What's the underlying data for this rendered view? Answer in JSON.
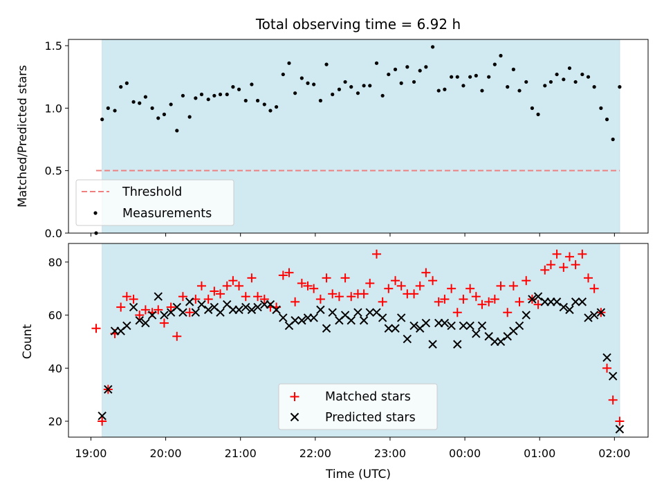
{
  "chart_data": [
    {
      "type": "scatter",
      "title": "Total observing time = 6.92 h",
      "ylabel": "Matched/Predicted stars",
      "xlabel": "",
      "ylim": [
        0,
        1.55
      ],
      "yticks": [
        "0.0",
        "0.5",
        "1.0",
        "1.5"
      ],
      "xlim_hours": [
        18.7,
        26.45
      ],
      "shaded_span_hours": [
        19.15,
        26.07
      ],
      "shade_color": "#add8e6",
      "threshold": {
        "name": "Threshold",
        "value": 0.5,
        "color": "#f08080",
        "style": "dashed"
      },
      "legend": {
        "placement": "lower-left",
        "entries": [
          "Threshold",
          "Measurements"
        ]
      },
      "series": [
        {
          "name": "Measurements",
          "marker": "dot",
          "color": "#000000",
          "points": [
            [
              19.07,
              0.0
            ],
            [
              19.15,
              0.91
            ],
            [
              19.23,
              1.0
            ],
            [
              19.32,
              0.98
            ],
            [
              19.4,
              1.17
            ],
            [
              19.48,
              1.2
            ],
            [
              19.57,
              1.05
            ],
            [
              19.65,
              1.04
            ],
            [
              19.73,
              1.09
            ],
            [
              19.82,
              1.0
            ],
            [
              19.9,
              0.92
            ],
            [
              19.98,
              0.95
            ],
            [
              20.07,
              1.03
            ],
            [
              20.15,
              0.82
            ],
            [
              20.23,
              1.1
            ],
            [
              20.32,
              0.93
            ],
            [
              20.4,
              1.08
            ],
            [
              20.48,
              1.11
            ],
            [
              20.57,
              1.07
            ],
            [
              20.65,
              1.1
            ],
            [
              20.73,
              1.11
            ],
            [
              20.82,
              1.11
            ],
            [
              20.9,
              1.17
            ],
            [
              20.98,
              1.15
            ],
            [
              21.07,
              1.06
            ],
            [
              21.15,
              1.19
            ],
            [
              21.23,
              1.06
            ],
            [
              21.32,
              1.03
            ],
            [
              21.4,
              0.98
            ],
            [
              21.48,
              1.01
            ],
            [
              21.57,
              1.27
            ],
            [
              21.65,
              1.36
            ],
            [
              21.73,
              1.12
            ],
            [
              21.82,
              1.24
            ],
            [
              21.9,
              1.2
            ],
            [
              21.98,
              1.19
            ],
            [
              22.07,
              1.06
            ],
            [
              22.15,
              1.35
            ],
            [
              22.23,
              1.11
            ],
            [
              22.32,
              1.15
            ],
            [
              22.4,
              1.21
            ],
            [
              22.48,
              1.17
            ],
            [
              22.57,
              1.12
            ],
            [
              22.65,
              1.18
            ],
            [
              22.73,
              1.18
            ],
            [
              22.82,
              1.36
            ],
            [
              22.9,
              1.1
            ],
            [
              22.98,
              1.27
            ],
            [
              23.07,
              1.31
            ],
            [
              23.15,
              1.2
            ],
            [
              23.23,
              1.33
            ],
            [
              23.32,
              1.21
            ],
            [
              23.4,
              1.3
            ],
            [
              23.48,
              1.33
            ],
            [
              23.57,
              1.49
            ],
            [
              23.65,
              1.14
            ],
            [
              23.73,
              1.15
            ],
            [
              23.82,
              1.25
            ],
            [
              23.9,
              1.25
            ],
            [
              23.98,
              1.18
            ],
            [
              24.07,
              1.25
            ],
            [
              24.15,
              1.26
            ],
            [
              24.23,
              1.14
            ],
            [
              24.32,
              1.25
            ],
            [
              24.4,
              1.35
            ],
            [
              24.48,
              1.42
            ],
            [
              24.57,
              1.17
            ],
            [
              24.65,
              1.31
            ],
            [
              24.73,
              1.14
            ],
            [
              24.82,
              1.21
            ],
            [
              24.9,
              1.0
            ],
            [
              24.98,
              0.95
            ],
            [
              25.07,
              1.18
            ],
            [
              25.15,
              1.21
            ],
            [
              25.23,
              1.27
            ],
            [
              25.32,
              1.23
            ],
            [
              25.4,
              1.32
            ],
            [
              25.48,
              1.21
            ],
            [
              25.57,
              1.27
            ],
            [
              25.65,
              1.25
            ],
            [
              25.73,
              1.17
            ],
            [
              25.82,
              1.0
            ],
            [
              25.9,
              0.91
            ],
            [
              25.98,
              0.75
            ],
            [
              26.07,
              1.17
            ]
          ]
        }
      ]
    },
    {
      "type": "scatter",
      "title": "",
      "ylabel": "Count",
      "xlabel": "Time (UTC)",
      "ylim": [
        14,
        87
      ],
      "yticks": [
        "20",
        "40",
        "60",
        "80"
      ],
      "xlim_hours": [
        18.7,
        26.45
      ],
      "xticks": [
        {
          "hour": 19,
          "label": "19:00"
        },
        {
          "hour": 20,
          "label": "20:00"
        },
        {
          "hour": 21,
          "label": "21:00"
        },
        {
          "hour": 22,
          "label": "22:00"
        },
        {
          "hour": 23,
          "label": "23:00"
        },
        {
          "hour": 24,
          "label": "00:00"
        },
        {
          "hour": 25,
          "label": "01:00"
        },
        {
          "hour": 26,
          "label": "02:00"
        }
      ],
      "shaded_span_hours": [
        19.15,
        26.07
      ],
      "shade_color": "#add8e6",
      "legend": {
        "placement": "lower-center",
        "entries": [
          "Matched stars",
          "Predicted stars"
        ]
      },
      "series": [
        {
          "name": "Matched stars",
          "marker": "plus",
          "color": "#ff0000",
          "points": [
            [
              19.07,
              55
            ],
            [
              19.15,
              20
            ],
            [
              19.23,
              32
            ],
            [
              19.32,
              53
            ],
            [
              19.4,
              63
            ],
            [
              19.48,
              67
            ],
            [
              19.57,
              66
            ],
            [
              19.65,
              60
            ],
            [
              19.73,
              62
            ],
            [
              19.82,
              61
            ],
            [
              19.9,
              62
            ],
            [
              19.98,
              57
            ],
            [
              20.07,
              63
            ],
            [
              20.15,
              52
            ],
            [
              20.23,
              67
            ],
            [
              20.32,
              61
            ],
            [
              20.4,
              66
            ],
            [
              20.48,
              71
            ],
            [
              20.57,
              66
            ],
            [
              20.65,
              69
            ],
            [
              20.73,
              68
            ],
            [
              20.82,
              71
            ],
            [
              20.9,
              73
            ],
            [
              20.98,
              71
            ],
            [
              21.07,
              67
            ],
            [
              21.15,
              74
            ],
            [
              21.23,
              67
            ],
            [
              21.32,
              66
            ],
            [
              21.4,
              63
            ],
            [
              21.48,
              63
            ],
            [
              21.57,
              75
            ],
            [
              21.65,
              76
            ],
            [
              21.73,
              65
            ],
            [
              21.82,
              72
            ],
            [
              21.9,
              71
            ],
            [
              21.98,
              70
            ],
            [
              22.07,
              66
            ],
            [
              22.15,
              74
            ],
            [
              22.23,
              68
            ],
            [
              22.32,
              67
            ],
            [
              22.4,
              74
            ],
            [
              22.48,
              67
            ],
            [
              22.57,
              68
            ],
            [
              22.65,
              68
            ],
            [
              22.73,
              72
            ],
            [
              22.82,
              83
            ],
            [
              22.9,
              65
            ],
            [
              22.98,
              70
            ],
            [
              23.07,
              73
            ],
            [
              23.15,
              71
            ],
            [
              23.23,
              68
            ],
            [
              23.32,
              68
            ],
            [
              23.4,
              71
            ],
            [
              23.48,
              76
            ],
            [
              23.57,
              73
            ],
            [
              23.65,
              65
            ],
            [
              23.73,
              66
            ],
            [
              23.82,
              70
            ],
            [
              23.9,
              61
            ],
            [
              23.98,
              66
            ],
            [
              24.07,
              70
            ],
            [
              24.15,
              67
            ],
            [
              24.23,
              64
            ],
            [
              24.32,
              65
            ],
            [
              24.4,
              66
            ],
            [
              24.48,
              71
            ],
            [
              24.57,
              61
            ],
            [
              24.65,
              71
            ],
            [
              24.73,
              65
            ],
            [
              24.82,
              73
            ],
            [
              24.9,
              66
            ],
            [
              24.98,
              64
            ],
            [
              25.07,
              77
            ],
            [
              25.15,
              79
            ],
            [
              25.23,
              83
            ],
            [
              25.32,
              78
            ],
            [
              25.4,
              82
            ],
            [
              25.48,
              79
            ],
            [
              25.57,
              83
            ],
            [
              25.65,
              74
            ],
            [
              25.73,
              70
            ],
            [
              25.82,
              61
            ],
            [
              25.9,
              40
            ],
            [
              25.98,
              28
            ],
            [
              26.07,
              20
            ]
          ]
        },
        {
          "name": "Predicted stars",
          "marker": "x",
          "color": "#000000",
          "points": [
            [
              19.15,
              22
            ],
            [
              19.23,
              32
            ],
            [
              19.32,
              54
            ],
            [
              19.4,
              54
            ],
            [
              19.48,
              56
            ],
            [
              19.57,
              63
            ],
            [
              19.65,
              58
            ],
            [
              19.73,
              57
            ],
            [
              19.82,
              60
            ],
            [
              19.9,
              67
            ],
            [
              19.98,
              60
            ],
            [
              20.07,
              61
            ],
            [
              20.15,
              63
            ],
            [
              20.23,
              61
            ],
            [
              20.32,
              65
            ],
            [
              20.4,
              61
            ],
            [
              20.48,
              64
            ],
            [
              20.57,
              62
            ],
            [
              20.65,
              63
            ],
            [
              20.73,
              61
            ],
            [
              20.82,
              64
            ],
            [
              20.9,
              62
            ],
            [
              20.98,
              62
            ],
            [
              21.07,
              63
            ],
            [
              21.15,
              62
            ],
            [
              21.23,
              63
            ],
            [
              21.32,
              64
            ],
            [
              21.4,
              64
            ],
            [
              21.48,
              62
            ],
            [
              21.57,
              59
            ],
            [
              21.65,
              56
            ],
            [
              21.73,
              58
            ],
            [
              21.82,
              58
            ],
            [
              21.9,
              59
            ],
            [
              21.98,
              59
            ],
            [
              22.07,
              62
            ],
            [
              22.15,
              55
            ],
            [
              22.23,
              61
            ],
            [
              22.32,
              58
            ],
            [
              22.4,
              60
            ],
            [
              22.48,
              58
            ],
            [
              22.57,
              61
            ],
            [
              22.65,
              58
            ],
            [
              22.73,
              61
            ],
            [
              22.82,
              61
            ],
            [
              22.9,
              59
            ],
            [
              22.98,
              55
            ],
            [
              23.07,
              55
            ],
            [
              23.15,
              59
            ],
            [
              23.23,
              51
            ],
            [
              23.32,
              56
            ],
            [
              23.4,
              55
            ],
            [
              23.48,
              57
            ],
            [
              23.57,
              49
            ],
            [
              23.65,
              57
            ],
            [
              23.73,
              57
            ],
            [
              23.82,
              56
            ],
            [
              23.9,
              49
            ],
            [
              23.98,
              56
            ],
            [
              24.07,
              56
            ],
            [
              24.15,
              53
            ],
            [
              24.23,
              56
            ],
            [
              24.32,
              52
            ],
            [
              24.4,
              50
            ],
            [
              24.48,
              50
            ],
            [
              24.57,
              52
            ],
            [
              24.65,
              54
            ],
            [
              24.73,
              56
            ],
            [
              24.82,
              60
            ],
            [
              24.9,
              66
            ],
            [
              24.98,
              67
            ],
            [
              25.07,
              65
            ],
            [
              25.15,
              65
            ],
            [
              25.23,
              65
            ],
            [
              25.32,
              63
            ],
            [
              25.4,
              62
            ],
            [
              25.48,
              65
            ],
            [
              25.57,
              65
            ],
            [
              25.65,
              59
            ],
            [
              25.73,
              60
            ],
            [
              25.82,
              61
            ],
            [
              25.9,
              44
            ],
            [
              25.98,
              37
            ],
            [
              26.07,
              17
            ]
          ]
        }
      ]
    }
  ]
}
